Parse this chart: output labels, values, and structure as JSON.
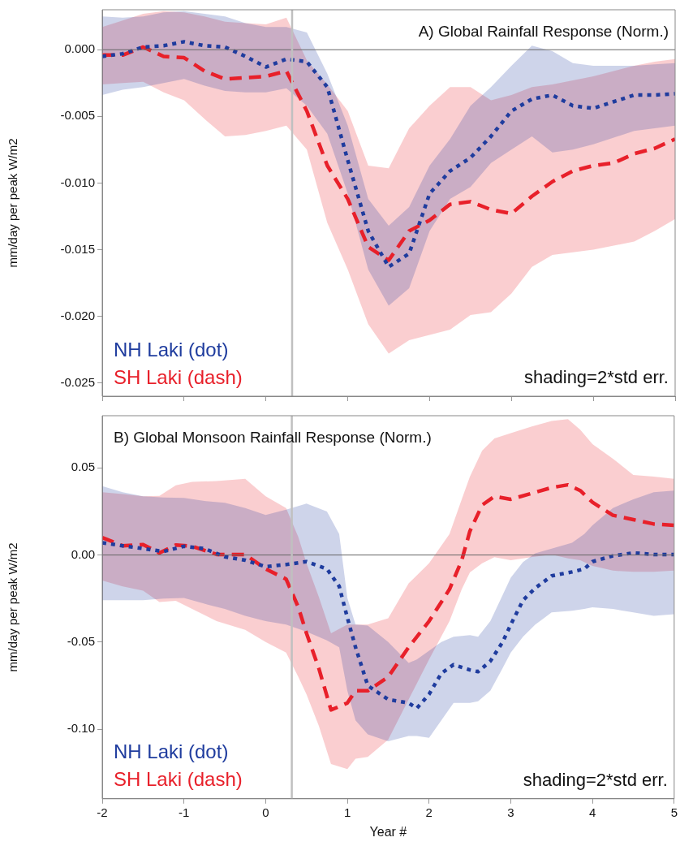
{
  "chart_data": [
    {
      "type": "line",
      "title": "A) Global Rainfall Response (Norm.)",
      "ylabel": "mm/day per peak W/m2",
      "xlim": [
        -2,
        5
      ],
      "xticks": [
        -2,
        -1,
        0,
        1,
        2,
        3,
        4,
        5
      ],
      "ylim": [
        -0.026,
        0.003
      ],
      "yticks": [
        {
          "value": 0,
          "label": "0.000"
        },
        {
          "value": -0.005,
          "label": "-0.005"
        },
        {
          "value": -0.01,
          "label": "-0.010"
        },
        {
          "value": -0.015,
          "label": "-0.015"
        },
        {
          "value": -0.02,
          "label": "-0.020"
        },
        {
          "value": -0.025,
          "label": "-0.025"
        }
      ],
      "tick_labels": "y",
      "grid": false,
      "legend": "bottom left",
      "marker": "none",
      "annotations": [
        "shading=2*std err."
      ],
      "ref_lines": [
        {
          "axis": "y",
          "value": 0,
          "color": "#666666"
        },
        {
          "axis": "x",
          "value": 0.32,
          "color": "#c0c0c0"
        }
      ],
      "series": [
        {
          "name": "NH Laki (dot)",
          "color": "#1f3c9e",
          "line_style": "dotted",
          "x": [
            -2,
            -1.75,
            -1.5,
            -1.25,
            -1,
            -0.75,
            -0.5,
            -0.25,
            0,
            0.25,
            0.5,
            0.75,
            1,
            1.25,
            1.5,
            1.75,
            2,
            2.25,
            2.5,
            2.75,
            3,
            3.25,
            3.5,
            3.75,
            4,
            4.25,
            4.5,
            4.75,
            5
          ],
          "values": [
            -0.0005,
            -0.0003,
            0.0002,
            0.0003,
            0.0006,
            0.0003,
            0.0002,
            -0.0005,
            -0.0013,
            -0.0007,
            -0.0009,
            -0.0028,
            -0.0083,
            -0.0136,
            -0.0163,
            -0.0153,
            -0.0108,
            -0.0091,
            -0.0081,
            -0.0065,
            -0.0046,
            -0.0037,
            -0.0034,
            -0.0042,
            -0.0044,
            -0.0039,
            -0.0034,
            -0.0034,
            -0.0033
          ],
          "upper": [
            0.0025,
            0.0024,
            0.0025,
            0.0028,
            0.0029,
            0.0027,
            0.0025,
            0.002,
            0.0017,
            0.0017,
            0.0013,
            -0.0018,
            -0.0057,
            -0.0112,
            -0.0132,
            -0.0118,
            -0.0087,
            -0.0067,
            -0.0042,
            -0.0028,
            -0.0012,
            0.0003,
            -0.0001,
            -0.001,
            -0.0012,
            -0.0012,
            -0.0012,
            -0.0011,
            -0.001
          ],
          "lower": [
            -0.0034,
            -0.003,
            -0.0028,
            -0.0025,
            -0.0022,
            -0.0027,
            -0.0031,
            -0.0032,
            -0.0032,
            -0.0029,
            -0.0042,
            -0.0063,
            -0.0108,
            -0.0165,
            -0.0192,
            -0.0179,
            -0.0136,
            -0.0112,
            -0.0103,
            -0.0085,
            -0.0075,
            -0.0065,
            -0.0077,
            -0.0075,
            -0.0071,
            -0.0066,
            -0.0061,
            -0.0059,
            -0.0057
          ]
        },
        {
          "name": "SH Laki (dash)",
          "color": "#e8202a",
          "line_style": "dashed",
          "x": [
            -2,
            -1.75,
            -1.5,
            -1.25,
            -1,
            -0.75,
            -0.5,
            -0.25,
            0,
            0.25,
            0.5,
            0.75,
            1,
            1.25,
            1.5,
            1.75,
            2,
            2.25,
            2.5,
            2.75,
            3,
            3.25,
            3.5,
            3.75,
            4,
            4.25,
            4.5,
            4.75,
            5
          ],
          "values": [
            -0.0004,
            -0.0004,
            0.0002,
            -0.0005,
            -0.0006,
            -0.0016,
            -0.0022,
            -0.0021,
            -0.002,
            -0.0016,
            -0.0046,
            -0.0087,
            -0.0112,
            -0.0148,
            -0.0158,
            -0.0136,
            -0.0128,
            -0.0116,
            -0.0114,
            -0.012,
            -0.0123,
            -0.011,
            -0.0099,
            -0.0091,
            -0.0087,
            -0.0085,
            -0.0078,
            -0.0074,
            -0.0067
          ],
          "upper": [
            0.0017,
            0.0022,
            0.0027,
            0.0029,
            0.0028,
            0.0025,
            0.0021,
            0.002,
            0.0019,
            0.0024,
            -0.0008,
            -0.0026,
            -0.0046,
            -0.0087,
            -0.0089,
            -0.0059,
            -0.0042,
            -0.0028,
            -0.0028,
            -0.0038,
            -0.0034,
            -0.0028,
            -0.0026,
            -0.0023,
            -0.002,
            -0.0016,
            -0.0012,
            -0.0009,
            -0.0007
          ],
          "lower": [
            -0.0026,
            -0.0025,
            -0.0024,
            -0.0032,
            -0.0038,
            -0.0052,
            -0.0065,
            -0.0064,
            -0.0061,
            -0.0057,
            -0.0075,
            -0.013,
            -0.0165,
            -0.0206,
            -0.0228,
            -0.0218,
            -0.0214,
            -0.021,
            -0.0199,
            -0.0197,
            -0.0183,
            -0.0163,
            -0.0154,
            -0.0152,
            -0.015,
            -0.0147,
            -0.0144,
            -0.0136,
            -0.0127
          ]
        }
      ]
    },
    {
      "type": "line",
      "title": "B) Global Monsoon Rainfall Response (Norm.)",
      "xlabel": "Year #",
      "ylabel": "mm/day per peak W/m2",
      "xlim": [
        -2,
        5
      ],
      "xticks": [
        -2,
        -1,
        0,
        1,
        2,
        3,
        4,
        5
      ],
      "ylim": [
        -0.14,
        0.08
      ],
      "yticks": [
        {
          "value": 0.05,
          "label": "0.05"
        },
        {
          "value": 0,
          "label": "0.00"
        },
        {
          "value": -0.05,
          "label": "-0.05"
        },
        {
          "value": -0.1,
          "label": "-0.10"
        }
      ],
      "grid": false,
      "legend": "bottom left",
      "marker": "none",
      "annotations": [
        "shading=2*std err."
      ],
      "ref_lines": [
        {
          "axis": "y",
          "value": 0,
          "color": "#666666"
        },
        {
          "axis": "x",
          "value": 0.32,
          "color": "#c0c0c0"
        }
      ],
      "series": [
        {
          "name": "NH Laki (dot)",
          "color": "#1f3c9e",
          "line_style": "dotted",
          "x": [
            -2,
            -1.75,
            -1.5,
            -1.25,
            -1,
            -0.75,
            -0.5,
            -0.25,
            0,
            0.25,
            0.5,
            0.75,
            0.9,
            1,
            1.1,
            1.25,
            1.5,
            1.75,
            1.85,
            2,
            2.15,
            2.3,
            2.5,
            2.6,
            2.75,
            2.9,
            3,
            3.15,
            3.3,
            3.5,
            3.75,
            3.9,
            4,
            4.25,
            4.5,
            4.75,
            5
          ],
          "values": [
            0.007,
            0.0053,
            0.0037,
            0.002,
            0.005,
            0.0037,
            -0.001,
            -0.003,
            -0.0067,
            -0.0055,
            -0.0038,
            -0.008,
            -0.018,
            -0.036,
            -0.053,
            -0.075,
            -0.083,
            -0.085,
            -0.088,
            -0.08,
            -0.068,
            -0.063,
            -0.066,
            -0.067,
            -0.061,
            -0.05,
            -0.04,
            -0.026,
            -0.019,
            -0.012,
            -0.0097,
            -0.008,
            -0.0038,
            -0.0005,
            0.0012,
            0.0003,
            0.0003
          ],
          "upper": [
            0.0395,
            0.036,
            0.0337,
            0.033,
            0.0328,
            0.031,
            0.03,
            0.027,
            0.023,
            0.026,
            0.0295,
            0.025,
            0.012,
            -0.0247,
            -0.04,
            -0.0405,
            -0.05,
            -0.062,
            -0.06,
            -0.055,
            -0.05,
            -0.047,
            -0.046,
            -0.047,
            -0.038,
            -0.023,
            -0.013,
            -0.004,
            0.001,
            0.0037,
            0.007,
            0.012,
            0.017,
            0.027,
            0.032,
            0.036,
            0.037
          ],
          "lower": [
            -0.026,
            -0.026,
            -0.026,
            -0.025,
            -0.0247,
            -0.028,
            -0.031,
            -0.035,
            -0.038,
            -0.04,
            -0.044,
            -0.049,
            -0.053,
            -0.078,
            -0.095,
            -0.103,
            -0.107,
            -0.104,
            -0.104,
            -0.105,
            -0.095,
            -0.085,
            -0.085,
            -0.084,
            -0.078,
            -0.065,
            -0.056,
            -0.047,
            -0.04,
            -0.033,
            -0.032,
            -0.031,
            -0.03,
            -0.031,
            -0.033,
            -0.035,
            -0.034
          ]
        },
        {
          "name": "SH Laki (dash)",
          "color": "#e8202a",
          "line_style": "dashed",
          "x": [
            -2,
            -1.75,
            -1.5,
            -1.3,
            -1.1,
            -0.9,
            -0.6,
            -0.25,
            0,
            0.25,
            0.4,
            0.5,
            0.65,
            0.8,
            1,
            1.1,
            1.25,
            1.5,
            1.75,
            2,
            2.25,
            2.4,
            2.5,
            2.65,
            2.8,
            3,
            3.25,
            3.5,
            3.7,
            3.85,
            4,
            4.25,
            4.5,
            4.75,
            5
          ],
          "values": [
            0.01,
            0.0053,
            0.006,
            0.0012,
            0.0057,
            0.005,
            0.0003,
            0.0003,
            -0.008,
            -0.0138,
            -0.03,
            -0.045,
            -0.065,
            -0.089,
            -0.085,
            -0.078,
            -0.078,
            -0.07,
            -0.053,
            -0.038,
            -0.0197,
            -0.003,
            0.0137,
            0.0287,
            0.0337,
            0.032,
            0.0353,
            0.0387,
            0.0403,
            0.037,
            0.0303,
            0.0228,
            0.0203,
            0.0178,
            0.017
          ],
          "upper": [
            0.036,
            0.035,
            0.0337,
            0.034,
            0.04,
            0.042,
            0.0425,
            0.0437,
            0.0337,
            0.027,
            0.0103,
            -0.0047,
            -0.024,
            -0.045,
            -0.04,
            -0.04,
            -0.04,
            -0.0363,
            -0.0163,
            -0.0047,
            0.012,
            0.032,
            0.045,
            0.06,
            0.067,
            0.07,
            0.0737,
            0.077,
            0.078,
            0.072,
            0.0637,
            0.0553,
            0.046,
            0.045,
            0.0437
          ],
          "lower": [
            -0.0147,
            -0.018,
            -0.0205,
            -0.027,
            -0.0263,
            -0.031,
            -0.038,
            -0.043,
            -0.05,
            -0.056,
            -0.07,
            -0.08,
            -0.098,
            -0.12,
            -0.123,
            -0.117,
            -0.116,
            -0.106,
            -0.083,
            -0.06,
            -0.038,
            -0.0197,
            -0.01,
            -0.0047,
            -0.0013,
            -0.003,
            -0.0013,
            0.0003,
            -0.002,
            -0.003,
            -0.0063,
            -0.009,
            -0.0097,
            -0.0097,
            -0.009
          ]
        }
      ]
    }
  ]
}
